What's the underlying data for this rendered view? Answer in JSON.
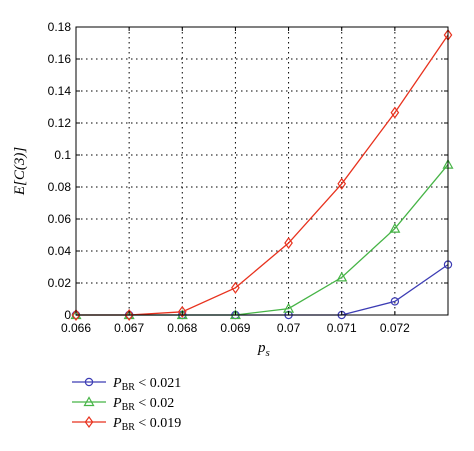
{
  "chart_data": {
    "type": "line",
    "title": "",
    "xlabel": "p",
    "xlabel_sub": "s",
    "ylabel": "E[C(3)]",
    "xlim": [
      0.066,
      0.073
    ],
    "ylim": [
      0,
      0.18
    ],
    "xticks": [
      "0.066",
      "0.067",
      "0.068",
      "0.069",
      "0.07",
      "0.071",
      "0.072"
    ],
    "xtick_values": [
      0.066,
      0.067,
      0.068,
      0.069,
      0.07,
      0.071,
      0.072
    ],
    "yticks": [
      "0",
      "0.02",
      "0.04",
      "0.06",
      "0.08",
      "0.1",
      "0.12",
      "0.14",
      "0.16",
      "0.18"
    ],
    "ytick_values": [
      0,
      0.02,
      0.04,
      0.06,
      0.08,
      0.1,
      0.12,
      0.14,
      0.16,
      0.18
    ],
    "grid": true,
    "x": [
      0.066,
      0.067,
      0.068,
      0.069,
      0.07,
      0.071,
      0.072,
      0.073
    ],
    "series": [
      {
        "name": "P_BR < 0.021",
        "legend_main": "P",
        "legend_sub": "BR",
        "legend_rest": " < 0.021",
        "color": "#3c3cb4",
        "marker": "circle",
        "values": [
          0,
          0,
          0,
          0,
          0,
          0,
          0.0085,
          0.0315
        ]
      },
      {
        "name": "P_BR < 0.02",
        "legend_main": "P",
        "legend_sub": "BR",
        "legend_rest": " < 0.02",
        "color": "#46b446",
        "marker": "triangle",
        "values": [
          0,
          0,
          0,
          0,
          0.004,
          0.0235,
          0.054,
          0.094
        ]
      },
      {
        "name": "P_BR < 0.019",
        "legend_main": "P",
        "legend_sub": "BR",
        "legend_rest": " < 0.019",
        "color": "#e8321e",
        "marker": "diamond",
        "values": [
          0,
          0,
          0.002,
          0.017,
          0.045,
          0.082,
          0.1265,
          0.175
        ]
      }
    ],
    "legend_placement": "bottom-left"
  }
}
